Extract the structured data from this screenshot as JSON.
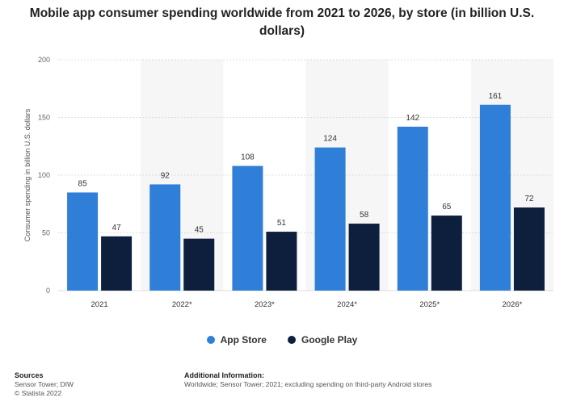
{
  "chart_data": {
    "type": "bar",
    "title": "Mobile app consumer spending worldwide from 2021 to 2026, by store (in billion U.S. dollars)",
    "ylabel": "Consumer spending in billion U.S. dollars",
    "xlabel": "",
    "categories": [
      "2021",
      "2022*",
      "2023*",
      "2024*",
      "2025*",
      "2026*"
    ],
    "series": [
      {
        "name": "App Store",
        "color": "#2f7ed8",
        "values": [
          85,
          92,
          108,
          124,
          142,
          161
        ]
      },
      {
        "name": "Google Play",
        "color": "#0d1f3c",
        "values": [
          47,
          45,
          51,
          58,
          65,
          72
        ]
      }
    ],
    "yticks": [
      0,
      50,
      100,
      150,
      200
    ],
    "ylim": [
      0,
      200
    ],
    "grid": true,
    "legend_position": "bottom"
  },
  "footer": {
    "sources_head": "Sources",
    "sources_line1": "Sensor Tower; DIW",
    "sources_line2": "© Statista 2022",
    "info_head": "Additional Information:",
    "info_line1": "Worldwide; Sensor Tower; 2021; excluding spending on third-party Android stores"
  }
}
